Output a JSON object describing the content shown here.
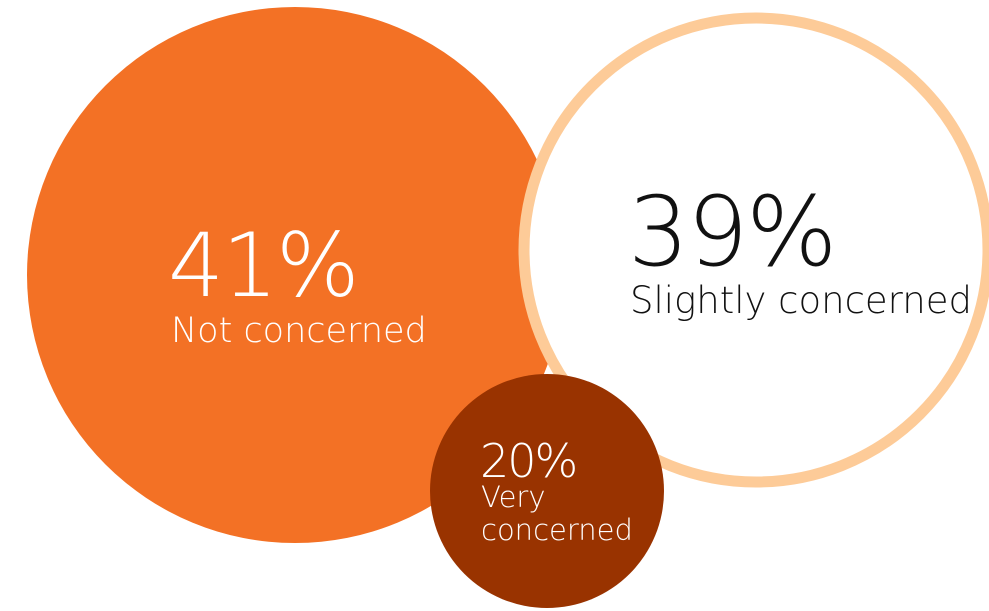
{
  "chart_data": {
    "type": "bubble",
    "series": [
      {
        "value": 41,
        "value_label": "41%",
        "label_lines": [
          "Not concerned"
        ],
        "color": "#F37125",
        "style": "filled",
        "text_color": "#FFFFFF"
      },
      {
        "value": 39,
        "value_label": "39%",
        "label_lines": [
          "Slightly concerned"
        ],
        "color": "#FDCB98",
        "style": "outline",
        "fill": "#FFFFFF",
        "text_color": "#111111"
      },
      {
        "value": 20,
        "value_label": "20%",
        "label_lines": [
          "Very",
          "concerned"
        ],
        "color": "#993300",
        "style": "filled",
        "text_color": "#FFFFFF"
      }
    ]
  }
}
